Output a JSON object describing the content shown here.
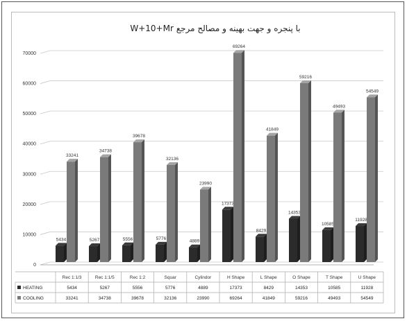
{
  "chart_data": {
    "type": "bar",
    "title": "با پنجره و جهت بهینه و مصالح مرجع W+10+Mr",
    "xlabel": "",
    "ylabel": "",
    "ylim": [
      0,
      70000
    ],
    "yticks": [
      "0",
      "10000",
      "20000",
      "30000",
      "40000",
      "50000",
      "60000",
      "70000"
    ],
    "grid": true,
    "legend": "bottom (data table)",
    "categories": [
      "Rec 1:1/3",
      "Rec 1:1/5",
      "Rec 1:2",
      "Squar",
      "Cylindor",
      "H Shape",
      "L Shape",
      "O Shape",
      "T Shape",
      "U Shape"
    ],
    "series": [
      {
        "name": "HEATING",
        "color": "#2b2b2b",
        "values": [
          5434,
          5267,
          5556,
          5776,
          4889,
          17373,
          8429,
          14353,
          10585,
          11928
        ],
        "labels": [
          "5434",
          "5267",
          "5556",
          "5776",
          "4889",
          "17373",
          "8429",
          "14353",
          "10585",
          "11928"
        ]
      },
      {
        "name": "COOLING",
        "color": "#7a7a7a",
        "values": [
          33241,
          34738,
          39678,
          32136,
          23990,
          69264,
          41849,
          59216,
          49493,
          54549
        ],
        "labels": [
          "33241",
          "34738",
          "39678",
          "32136",
          "23990",
          "69264",
          "41849",
          "59216",
          "49493",
          "54549"
        ]
      }
    ]
  }
}
